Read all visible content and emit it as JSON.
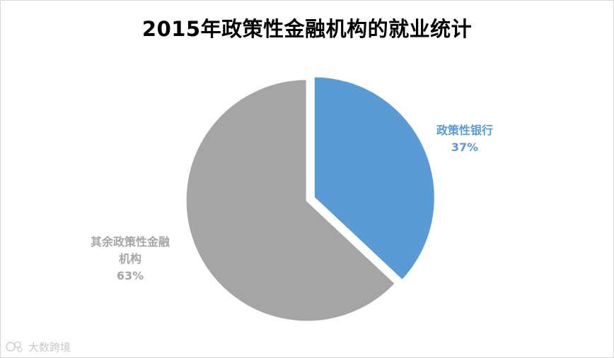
{
  "chart_data": {
    "type": "pie",
    "title": "2015年政策性金融机构的就业统计",
    "slices": [
      {
        "label": "政策性银行",
        "value": 37,
        "value_label": "37%",
        "color": "#5b9bd5"
      },
      {
        "label": "其余政策性金融机构",
        "value": 63,
        "value_label": "63%",
        "color": "#a5a5a5"
      }
    ],
    "legend": "none",
    "data_labels": "outside"
  },
  "watermark": {
    "text": "大数跨境",
    "icon": "logo-icon"
  },
  "labels": {
    "slice0_line1": "政策性银行",
    "slice0_pct": "37%",
    "slice1_line1": "其余政策性金融",
    "slice1_line2": "机构",
    "slice1_pct": "63%"
  }
}
